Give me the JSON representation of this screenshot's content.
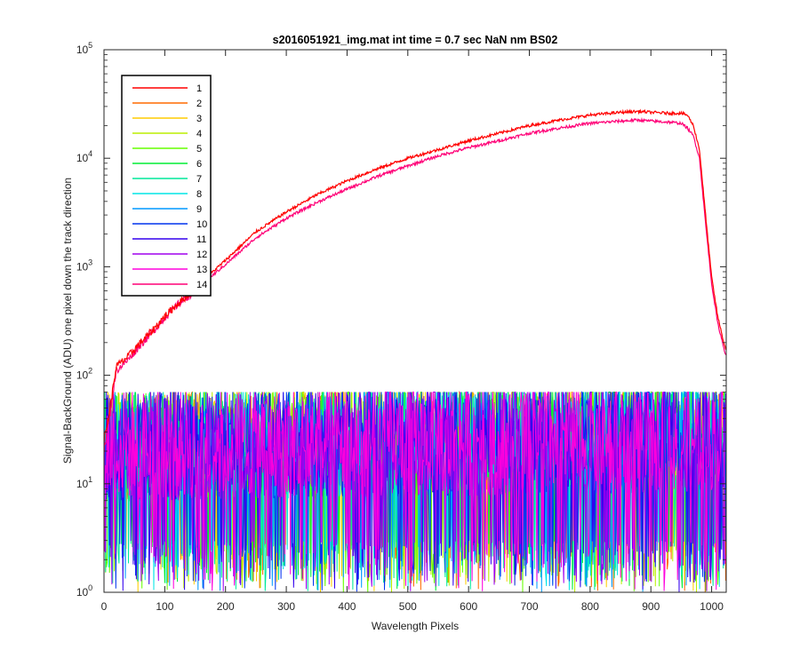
{
  "chart_data": {
    "type": "line",
    "title": "s2016051921_img.mat int time = 0.7 sec  NaN nm BS02",
    "xlabel": "Wavelength Pixels",
    "ylabel": "Signal-BackGround (ADU) one pixel down the track direction",
    "xlim": [
      0,
      1024
    ],
    "ylim": [
      1,
      100000
    ],
    "yscale": "log",
    "grid": false,
    "legend_position": "top-left",
    "x_ticks": [
      0,
      100,
      200,
      300,
      400,
      500,
      600,
      700,
      800,
      900,
      1000
    ],
    "x_tick_labels": [
      "0",
      "100",
      "200",
      "300",
      "400",
      "500",
      "600",
      "700",
      "800",
      "900",
      "1000"
    ],
    "y_ticks": [
      1,
      10,
      100,
      1000,
      10000,
      100000
    ],
    "y_tick_labels": [
      {
        "base": "10",
        "exp": "0"
      },
      {
        "base": "10",
        "exp": "1"
      },
      {
        "base": "10",
        "exp": "2"
      },
      {
        "base": "10",
        "exp": "3"
      },
      {
        "base": "10",
        "exp": "4"
      },
      {
        "base": "10",
        "exp": "5"
      }
    ],
    "series": [
      {
        "name": "1",
        "color": "#ff0000",
        "profile": "signal",
        "x": [
          0,
          5,
          10,
          20,
          40,
          60,
          80,
          100,
          120,
          140,
          160,
          200,
          250,
          300,
          350,
          400,
          450,
          500,
          550,
          600,
          650,
          700,
          750,
          800,
          850,
          880,
          900,
          930,
          950,
          960,
          970,
          980,
          990,
          1000,
          1010,
          1020,
          1024
        ],
        "y": [
          25,
          35,
          50,
          120,
          150,
          200,
          260,
          350,
          450,
          560,
          720,
          1150,
          2100,
          3200,
          4600,
          6200,
          8000,
          10000,
          12000,
          14500,
          17000,
          20000,
          22500,
          25000,
          26500,
          27000,
          26500,
          26000,
          26000,
          25000,
          20000,
          12000,
          3000,
          800,
          350,
          200,
          170
        ]
      },
      {
        "name": "2",
        "color": "#ff6a00",
        "profile": "noise",
        "x": [
          0,
          1024
        ],
        "y": [
          20,
          25
        ]
      },
      {
        "name": "3",
        "color": "#ffcc00",
        "profile": "noise",
        "x": [
          0,
          1024
        ],
        "y": [
          20,
          25
        ]
      },
      {
        "name": "4",
        "color": "#bbee00",
        "profile": "noise",
        "x": [
          0,
          1024
        ],
        "y": [
          20,
          25
        ]
      },
      {
        "name": "5",
        "color": "#66ff00",
        "profile": "noise",
        "x": [
          0,
          1024
        ],
        "y": [
          20,
          25
        ]
      },
      {
        "name": "6",
        "color": "#00ee33",
        "profile": "noise",
        "x": [
          0,
          1024
        ],
        "y": [
          20,
          25
        ]
      },
      {
        "name": "7",
        "color": "#00e89a",
        "profile": "noise",
        "x": [
          0,
          1024
        ],
        "y": [
          20,
          25
        ]
      },
      {
        "name": "8",
        "color": "#00e5e5",
        "profile": "noise",
        "x": [
          0,
          1024
        ],
        "y": [
          20,
          25
        ]
      },
      {
        "name": "9",
        "color": "#0099ff",
        "profile": "noise",
        "x": [
          0,
          1024
        ],
        "y": [
          20,
          25
        ]
      },
      {
        "name": "10",
        "color": "#0033ee",
        "profile": "noise",
        "x": [
          0,
          1024
        ],
        "y": [
          20,
          25
        ]
      },
      {
        "name": "11",
        "color": "#3300ee",
        "profile": "noise",
        "x": [
          0,
          1024
        ],
        "y": [
          20,
          25
        ]
      },
      {
        "name": "12",
        "color": "#a000ee",
        "profile": "noise",
        "x": [
          0,
          1024
        ],
        "y": [
          20,
          25
        ]
      },
      {
        "name": "13",
        "color": "#ff00dd",
        "profile": "noise",
        "x": [
          0,
          1024
        ],
        "y": [
          20,
          25
        ]
      },
      {
        "name": "14",
        "color": "#ff0077",
        "profile": "signal",
        "x": [
          0,
          5,
          10,
          20,
          40,
          60,
          80,
          100,
          120,
          140,
          160,
          200,
          250,
          300,
          350,
          400,
          450,
          500,
          550,
          600,
          650,
          700,
          750,
          800,
          850,
          880,
          900,
          930,
          950,
          960,
          970,
          980,
          990,
          1000,
          1010,
          1020,
          1024
        ],
        "y": [
          20,
          30,
          45,
          110,
          140,
          190,
          250,
          340,
          440,
          540,
          680,
          1050,
          1850,
          2800,
          3900,
          5200,
          6800,
          8500,
          10500,
          12500,
          14500,
          17000,
          19000,
          21000,
          22000,
          22500,
          22000,
          21500,
          21000,
          19000,
          16000,
          10000,
          2500,
          700,
          300,
          180,
          150
        ]
      }
    ]
  }
}
